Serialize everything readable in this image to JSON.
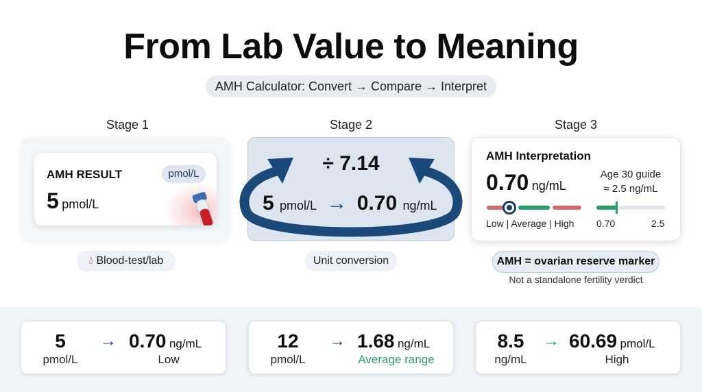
{
  "title": "From Lab Value to Meaning",
  "subtitle": "AMH Calculator: Convert → Compare → Interpret",
  "stages": {
    "stage1": {
      "label": "Stage 1",
      "card_title": "AMH RESULT",
      "unit_pill": "pmol/L",
      "value": "5",
      "unit": "pmol/L",
      "chip": "Blood-test/lab"
    },
    "stage2": {
      "label": "Stage 2",
      "divisor": "÷ 7.14",
      "from_value": "5",
      "from_unit": "pmol/L",
      "arrow": "→",
      "to_value": "0.70",
      "to_unit": "ng/mL",
      "chip": "Unit conversion"
    },
    "stage3": {
      "label": "Stage 3",
      "card_title": "AMH Interpretation",
      "value": "0.70",
      "unit": "ng/mL",
      "guide_line1": "Age 30 guide",
      "guide_line2": "≈ 2.5 ng/mL",
      "scale_labels": "Low | Average | High",
      "guide_min": "0.70",
      "guide_max": "2.5",
      "marker_level": 0.12,
      "guide_fill_fraction": 0.28,
      "pill": "AMH = ovarian reserve marker",
      "note": "Not a standalone fertility verdict"
    }
  },
  "examples": [
    {
      "from_value": "5",
      "from_unit": "pmol/L",
      "arrow": "→",
      "to_value": "0.70",
      "to_unit": "ng/mL",
      "category": "Low",
      "category_color": "#111111",
      "arrow_color": "#1b4a7a"
    },
    {
      "from_value": "12",
      "from_unit": "pmol/L",
      "arrow": "→",
      "to_value": "1.68",
      "to_unit": "ng/mL",
      "category": "Average range",
      "category_color": "#2a9d6a",
      "arrow_color": "#1b4a7a"
    },
    {
      "from_value": "8.5",
      "from_unit": "ng/mL",
      "arrow": "→",
      "to_value": "60.69",
      "to_unit": "pmol/L",
      "category": "High",
      "category_color": "#111111",
      "arrow_color": "#2a9d6a"
    }
  ],
  "colors": {
    "navy": "#1d3c63",
    "green": "#2a9d6a",
    "red": "#d16b6b",
    "blood": "#c8202a"
  }
}
